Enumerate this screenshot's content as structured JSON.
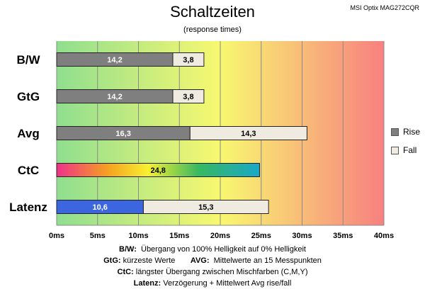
{
  "header": {
    "title": "Schaltzeiten",
    "subtitle": "(response times)",
    "model": "MSI Optix MAG272CQR"
  },
  "legend": {
    "rise_label": "Rise",
    "fall_label": "Fall"
  },
  "colors": {
    "rise": "#7f7f7f",
    "fall": "#efebe0",
    "latency": "#3b66e0",
    "bg_start": "#8fde8f",
    "bg_mid": "#f8f870",
    "bg_end": "#f88080"
  },
  "notes": {
    "bw_key": "B/W:",
    "bw_text": "Übergang von 100% Helligkeit auf 0% Helligkeit",
    "gtg_key": "GtG:",
    "gtg_text": "kürzeste  Werte",
    "avg_key": "AVG:",
    "avg_text": "Mittelwerte  an 15 Messpunkten",
    "ctc_key": "CtC:",
    "ctc_text": "längster Übergang zwischen Mischfarben (C,M,Y)",
    "lat_key": "Latenz:",
    "lat_text": "Verzögerung  + Mittelwert Avg rise/fall"
  },
  "chart_data": {
    "type": "bar",
    "orientation": "horizontal",
    "stacked": true,
    "categories": [
      "B/W",
      "GtG",
      "Avg",
      "CtC",
      "Latenz"
    ],
    "series": [
      {
        "name": "Rise",
        "values": [
          14.2,
          14.2,
          16.3,
          24.8,
          10.6
        ]
      },
      {
        "name": "Fall",
        "values": [
          3.8,
          3.8,
          14.3,
          null,
          15.3
        ]
      }
    ],
    "xlim": [
      0,
      40
    ],
    "xticks": [
      0,
      5,
      10,
      15,
      20,
      25,
      30,
      35,
      40
    ],
    "tick_suffix": "ms",
    "legend_position": "right"
  }
}
